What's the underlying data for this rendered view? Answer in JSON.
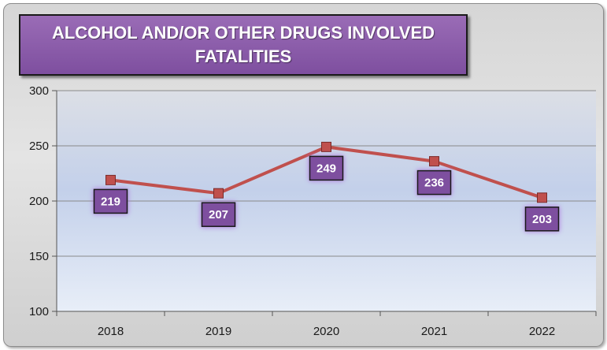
{
  "chart_data": {
    "type": "line",
    "title": "ALCOHOL AND/OR OTHER DRUGS INVOLVED FATALITIES",
    "categories": [
      "2018",
      "2019",
      "2020",
      "2021",
      "2022"
    ],
    "series": [
      {
        "values": [
          219,
          207,
          249,
          236,
          203
        ],
        "color": "#c0504d"
      }
    ],
    "data_labels": [
      "219",
      "207",
      "249",
      "236",
      "203"
    ],
    "yticks": [
      "300",
      "250",
      "200",
      "150",
      "100"
    ],
    "ylim": [
      100,
      300
    ],
    "grid": true,
    "colors": {
      "title_background": "#7e4f9f",
      "label_background": "#7e4f9f",
      "line": "#c0504d"
    }
  }
}
